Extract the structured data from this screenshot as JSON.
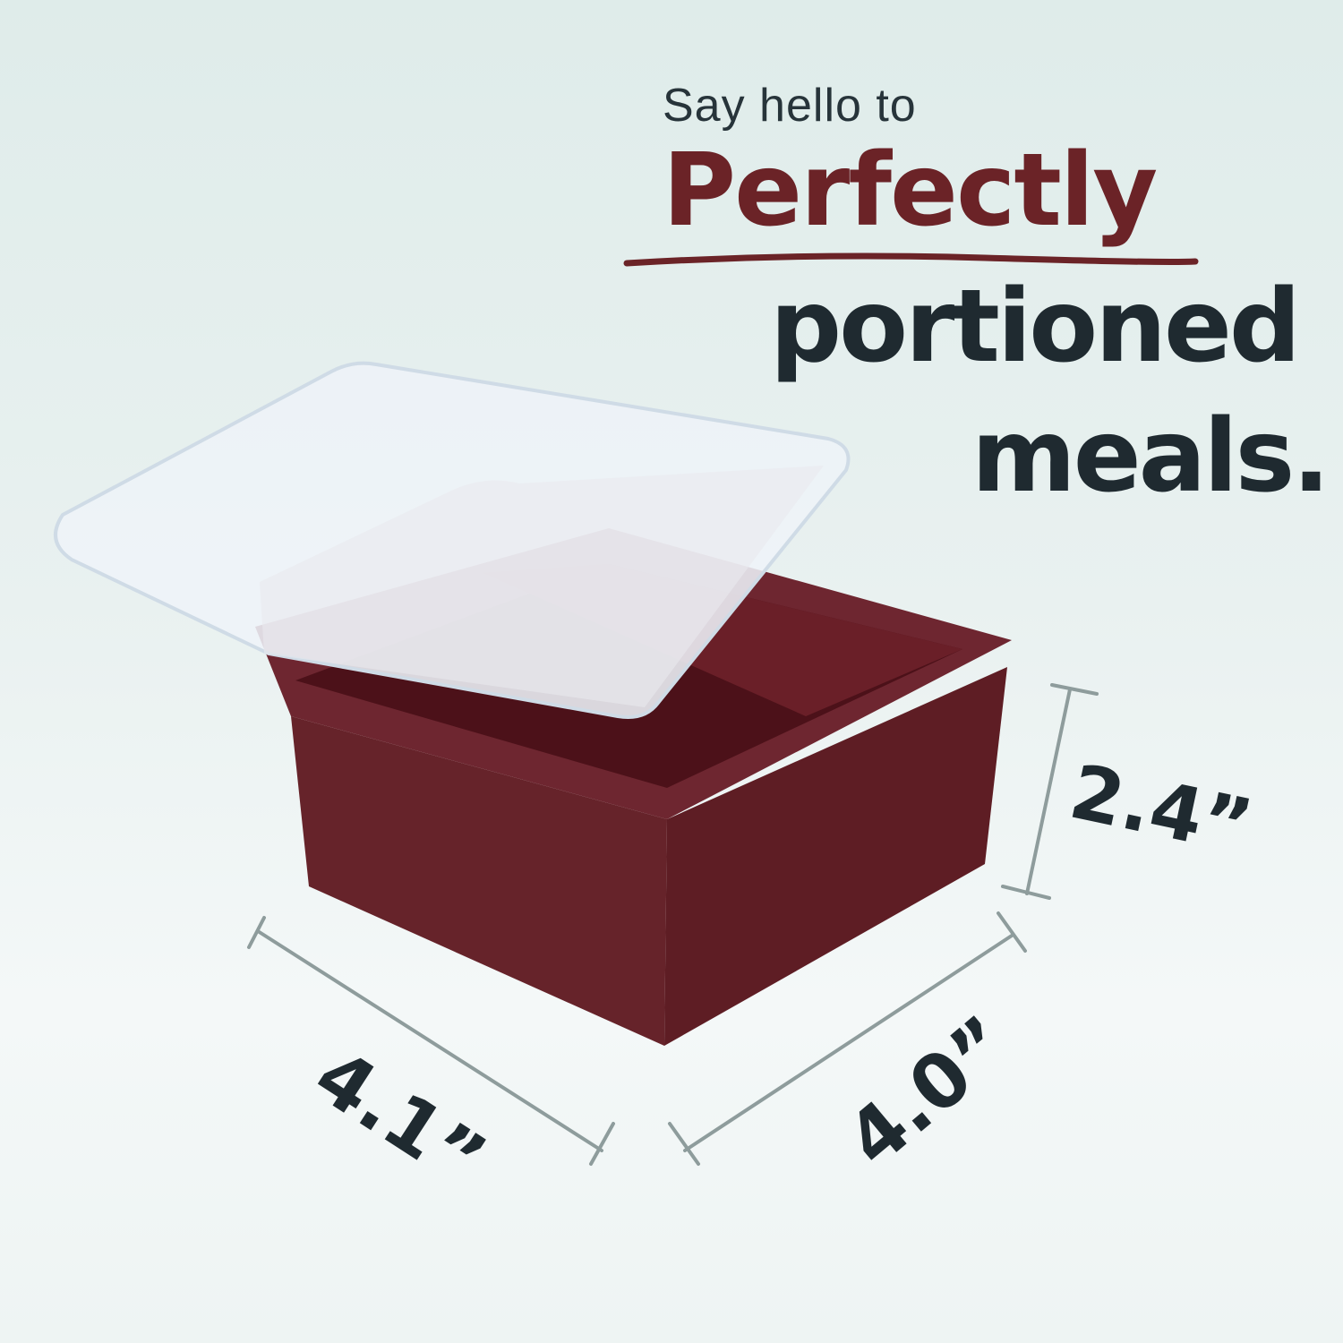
{
  "headline": {
    "intro": "Say hello to",
    "emphasis": "Perfectly",
    "line2": "portioned",
    "line3": "meals."
  },
  "dimensions": {
    "height": "2.4”",
    "width": "4.1”",
    "depth": "4.0”"
  },
  "colors": {
    "accent": "#6b2327",
    "text": "#1f2a30",
    "container": "#6a2128",
    "dimension_line": "#8e9c9c"
  }
}
